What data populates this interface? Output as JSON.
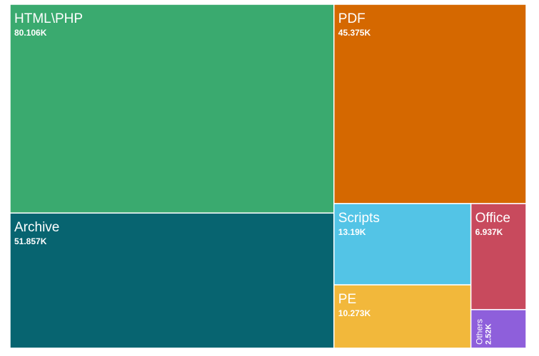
{
  "chart_data": {
    "type": "treemap",
    "categories": [
      "HTML\\PHP",
      "Archive",
      "PDF",
      "Scripts",
      "PE",
      "Office",
      "Others"
    ],
    "values": [
      80106,
      51857,
      45375,
      13190,
      10273,
      6937,
      2520
    ],
    "value_labels": [
      "80.106K",
      "51.857K",
      "45.375K",
      "13.19K",
      "10.273K",
      "6.937K",
      "2.52K"
    ],
    "colors": [
      "#3aaa6f",
      "#076470",
      "#d56800",
      "#53c4e6",
      "#f2b83b",
      "#c84a5d",
      "#8e5fdb"
    ]
  }
}
